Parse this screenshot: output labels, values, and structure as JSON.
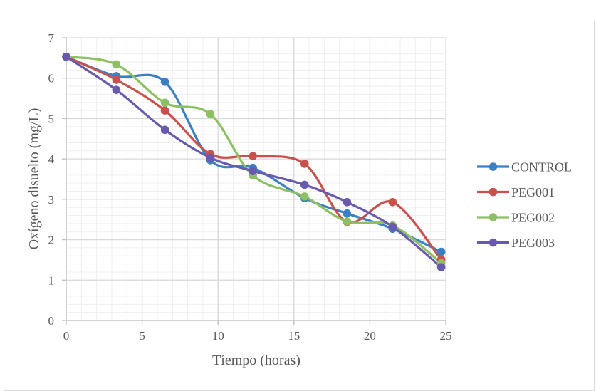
{
  "chart_data": {
    "type": "line",
    "smoothed": true,
    "title": "",
    "xlabel": "Tíempo (horas)",
    "ylabel": "Oxígeno disuelto (mg/L)",
    "xlim": [
      0,
      25
    ],
    "ylim": [
      0,
      7
    ],
    "x_ticks": [
      0,
      5,
      10,
      15,
      20,
      25
    ],
    "y_ticks": [
      0,
      1,
      2,
      3,
      4,
      5,
      6,
      7
    ],
    "x_minor_step": 1,
    "y_minor_step": 0.2,
    "grid": true,
    "legend_position": "right",
    "x": [
      0,
      3.3,
      6.5,
      9.5,
      12.3,
      15.7,
      18.5,
      21.5,
      24.7
    ],
    "series": [
      {
        "name": "CONTROL",
        "color": "#3b7fc4",
        "values": [
          6.53,
          6.05,
          5.91,
          3.97,
          3.78,
          3.03,
          2.65,
          2.27,
          1.7
        ]
      },
      {
        "name": "PEG001",
        "color": "#c9504b",
        "values": [
          6.53,
          5.96,
          5.2,
          4.12,
          4.07,
          3.88,
          2.44,
          2.93,
          1.51
        ]
      },
      {
        "name": "PEG002",
        "color": "#8cc063",
        "values": [
          6.53,
          6.34,
          5.39,
          5.11,
          3.59,
          3.07,
          2.45,
          2.35,
          1.42
        ]
      },
      {
        "name": "PEG003",
        "color": "#6a5aaf",
        "values": [
          6.53,
          5.71,
          4.72,
          4.03,
          3.7,
          3.36,
          2.93,
          2.32,
          1.32
        ]
      }
    ]
  },
  "colors": {
    "grid_major": "#d9d9d9",
    "grid_minor": "#efefef",
    "axis": "#bfbfbf",
    "text": "#595959",
    "frame": "#d9d9d9"
  }
}
